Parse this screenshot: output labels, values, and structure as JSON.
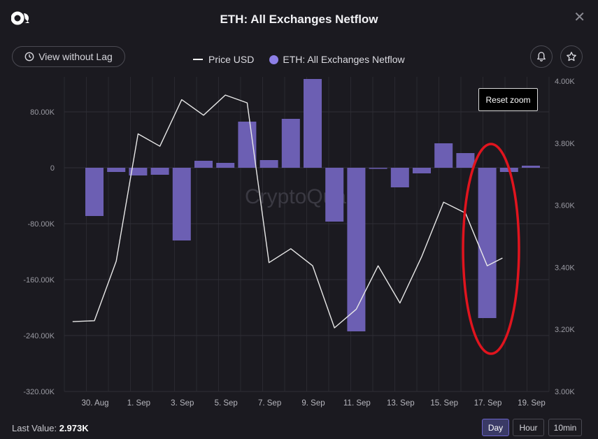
{
  "header": {
    "title": "ETH: All Exchanges Netflow",
    "close_label": "✕"
  },
  "toolbar": {
    "lag_button_label": "View without Lag",
    "reset_zoom_label": "Reset zoom"
  },
  "footer": {
    "last_value_label": "Last Value:",
    "last_value": "2.973K",
    "periods": [
      "Day",
      "Hour",
      "10min"
    ],
    "active_period": "Day"
  },
  "watermark": "CryptoQuant",
  "colors": {
    "background": "#1b1a20",
    "bar": "#6c5fb3",
    "price_line": "#e8e8e8",
    "legend_netflow": "#8d7fe6",
    "highlight_ellipse": "#e0141e"
  },
  "chart_data": {
    "type": "bar",
    "x_dates": [
      "29 Aug",
      "30 Aug",
      "31 Aug",
      "1 Sep",
      "2 Sep",
      "3 Sep",
      "4 Sep",
      "5 Sep",
      "6 Sep",
      "7 Sep",
      "8 Sep",
      "9 Sep",
      "10 Sep",
      "11 Sep",
      "12 Sep",
      "13 Sep",
      "14 Sep",
      "15 Sep",
      "16 Sep",
      "17 Sep",
      "18 Sep",
      "19 Sep"
    ],
    "x_tick_labels": [
      "30. Aug",
      "1. Sep",
      "3. Sep",
      "5. Sep",
      "7. Sep",
      "9. Sep",
      "11. Sep",
      "13. Sep",
      "15. Sep",
      "17. Sep",
      "19. Sep"
    ],
    "x_tick_dates": [
      "30 Aug",
      "1 Sep",
      "3 Sep",
      "5 Sep",
      "7 Sep",
      "9 Sep",
      "11 Sep",
      "13 Sep",
      "15 Sep",
      "17 Sep",
      "19 Sep"
    ],
    "series": [
      {
        "name": "ETH: All Exchanges Netflow",
        "axis": "left",
        "kind": "bar",
        "dates": [
          "30 Aug",
          "31 Aug",
          "1 Sep",
          "2 Sep",
          "3 Sep",
          "4 Sep",
          "5 Sep",
          "6 Sep",
          "7 Sep",
          "8 Sep",
          "9 Sep",
          "10 Sep",
          "11 Sep",
          "12 Sep",
          "13 Sep",
          "14 Sep",
          "15 Sep",
          "16 Sep",
          "17 Sep",
          "18 Sep",
          "19 Sep"
        ],
        "values": [
          -69000,
          -6000,
          -11000,
          -10000,
          -104000,
          10000,
          7000,
          66000,
          11000,
          70000,
          127000,
          -77000,
          -234000,
          0,
          -28000,
          -8000,
          35000,
          21000,
          -215000,
          -6000,
          3000
        ]
      },
      {
        "name": "Price USD",
        "axis": "right",
        "kind": "line",
        "dates": [
          "29 Aug",
          "30 Aug",
          "31 Aug",
          "1 Sep",
          "2 Sep",
          "3 Sep",
          "4 Sep",
          "5 Sep",
          "6 Sep",
          "7 Sep",
          "8 Sep",
          "9 Sep",
          "10 Sep",
          "11 Sep",
          "12 Sep",
          "13 Sep",
          "14 Sep",
          "15 Sep",
          "16 Sep",
          "17 Sep",
          "17.7 Sep"
        ],
        "values": [
          3225,
          3228,
          3420,
          3830,
          3790,
          3940,
          3890,
          3955,
          3930,
          3415,
          3460,
          3405,
          3205,
          3265,
          3405,
          3285,
          3435,
          3610,
          3575,
          3405,
          3430
        ]
      }
    ],
    "y_left": {
      "ticks": [
        "80.00K",
        "0",
        "-80.00K",
        "-160.00K",
        "-240.00K",
        "-320.00K"
      ],
      "tick_values": [
        80000,
        0,
        -80000,
        -160000,
        -240000,
        -320000
      ],
      "range": [
        -320000,
        130000
      ]
    },
    "y_right": {
      "ticks": [
        "4.00K",
        "3.80K",
        "3.60K",
        "3.40K",
        "3.20K",
        "3.00K"
      ],
      "tick_values": [
        4000,
        3800,
        3600,
        3400,
        3200,
        3000
      ],
      "range": [
        3000,
        4000
      ]
    },
    "grid": true,
    "legend_position": "top-center"
  }
}
